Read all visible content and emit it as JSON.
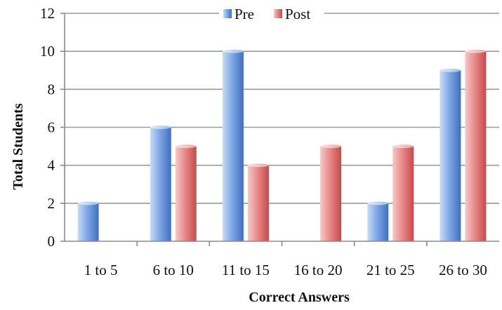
{
  "chart_data": {
    "type": "bar",
    "categories": [
      "1 to 5",
      "6 to 10",
      "11 to 15",
      "16 to 20",
      "21 to 25",
      "26 to 30"
    ],
    "series": [
      {
        "name": "Pre",
        "values": [
          2,
          6,
          10,
          0,
          2,
          9
        ],
        "color": "#5b8fd9"
      },
      {
        "name": "Post",
        "values": [
          0,
          5,
          4,
          5,
          5,
          10
        ],
        "color": "#e06666"
      }
    ],
    "xlabel": "Correct Answers",
    "ylabel": "Total Students",
    "ylim": [
      0,
      12
    ],
    "yticks": [
      0,
      2,
      4,
      6,
      8,
      10,
      12
    ],
    "grid": true,
    "legend_position": "top-center"
  }
}
